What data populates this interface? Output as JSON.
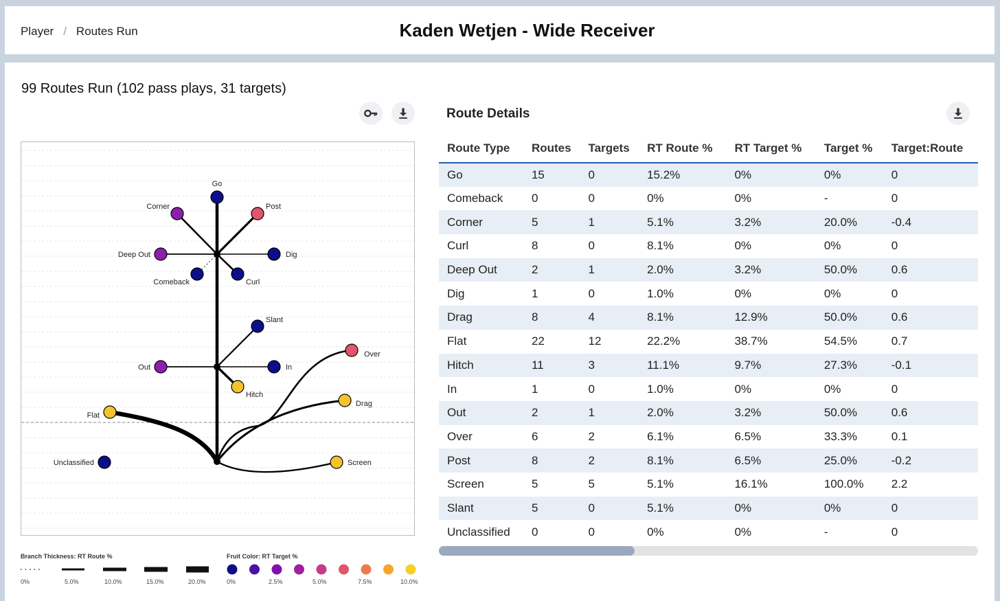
{
  "header": {
    "breadcrumb": [
      "Player",
      "Routes Run"
    ],
    "breadcrumb_sep": "/",
    "title": "Kaden Wetjen - Wide Receiver"
  },
  "routes_panel": {
    "title": "99 Routes Run (102 pass plays, 31 targets)",
    "key_icon": "key-icon",
    "download_icon": "download-icon"
  },
  "tree": {
    "nodes": [
      {
        "label": "Go",
        "color": "#0c0f8a"
      },
      {
        "label": "Corner",
        "color": "#8c1fae"
      },
      {
        "label": "Post",
        "color": "#e0566b"
      },
      {
        "label": "Deep Out",
        "color": "#8c1fae"
      },
      {
        "label": "Dig",
        "color": "#0c0f8a"
      },
      {
        "label": "Comeback",
        "color": "#0c0f8a"
      },
      {
        "label": "Curl",
        "color": "#0c0f8a"
      },
      {
        "label": "Slant",
        "color": "#0c0f8a"
      },
      {
        "label": "Out",
        "color": "#8c1fae"
      },
      {
        "label": "In",
        "color": "#0c0f8a"
      },
      {
        "label": "Hitch",
        "color": "#f5c32a"
      },
      {
        "label": "Over",
        "color": "#e0566b"
      },
      {
        "label": "Drag",
        "color": "#f5c32a"
      },
      {
        "label": "Flat",
        "color": "#f5c32a"
      },
      {
        "label": "Unclassified",
        "color": "#0c0f8a"
      },
      {
        "label": "Screen",
        "color": "#f5c32a"
      }
    ]
  },
  "legend": {
    "thickness_label": "Branch Thickness: RT Route %",
    "thickness_ticks": [
      "0%",
      "5.0%",
      "10.0%",
      "15.0%",
      "20.0%"
    ],
    "color_label": "Fruit Color: RT Target %",
    "color_ticks": [
      "0%",
      "2.5%",
      "5.0%",
      "7.5%",
      "10.0%"
    ],
    "colors": [
      "#0c0f8a",
      "#4a12a6",
      "#8010b0",
      "#a0209f",
      "#c53a8a",
      "#e0566b",
      "#f07a4a",
      "#f7a52c",
      "#f5d027"
    ]
  },
  "details": {
    "title": "Route Details",
    "download_icon": "download-icon",
    "columns": [
      "Route Type",
      "Routes",
      "Targets",
      "RT Route %",
      "RT Target %",
      "Target %",
      "Target:Route"
    ],
    "rows": [
      [
        "Go",
        "15",
        "0",
        "15.2%",
        "0%",
        "0%",
        "0"
      ],
      [
        "Comeback",
        "0",
        "0",
        "0%",
        "0%",
        "-",
        "0"
      ],
      [
        "Corner",
        "5",
        "1",
        "5.1%",
        "3.2%",
        "20.0%",
        "-0.4"
      ],
      [
        "Curl",
        "8",
        "0",
        "8.1%",
        "0%",
        "0%",
        "0"
      ],
      [
        "Deep Out",
        "2",
        "1",
        "2.0%",
        "3.2%",
        "50.0%",
        "0.6"
      ],
      [
        "Dig",
        "1",
        "0",
        "1.0%",
        "0%",
        "0%",
        "0"
      ],
      [
        "Drag",
        "8",
        "4",
        "8.1%",
        "12.9%",
        "50.0%",
        "0.6"
      ],
      [
        "Flat",
        "22",
        "12",
        "22.2%",
        "38.7%",
        "54.5%",
        "0.7"
      ],
      [
        "Hitch",
        "11",
        "3",
        "11.1%",
        "9.7%",
        "27.3%",
        "-0.1"
      ],
      [
        "In",
        "1",
        "0",
        "1.0%",
        "0%",
        "0%",
        "0"
      ],
      [
        "Out",
        "2",
        "1",
        "2.0%",
        "3.2%",
        "50.0%",
        "0.6"
      ],
      [
        "Over",
        "6",
        "2",
        "6.1%",
        "6.5%",
        "33.3%",
        "0.1"
      ],
      [
        "Post",
        "8",
        "2",
        "8.1%",
        "6.5%",
        "25.0%",
        "-0.2"
      ],
      [
        "Screen",
        "5",
        "5",
        "5.1%",
        "16.1%",
        "100.0%",
        "2.2"
      ],
      [
        "Slant",
        "5",
        "0",
        "5.1%",
        "0%",
        "0%",
        "0"
      ],
      [
        "Unclassified",
        "0",
        "0",
        "0%",
        "0%",
        "-",
        "0"
      ]
    ]
  }
}
